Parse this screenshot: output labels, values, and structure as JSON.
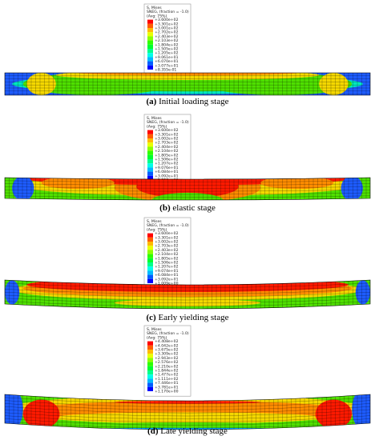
{
  "panels": [
    {
      "legend": {
        "header": [
          "S, Mises",
          "SNEG, (fraction = -1.0)",
          "(Avg: 75%)"
        ],
        "values": [
          "+3.600e+02",
          "+3.301e+02",
          "+3.001e+02",
          "+2.702e+02",
          "+2.403e+02",
          "+2.103e+02",
          "+1.804e+02",
          "+1.505e+02",
          "+1.205e+02",
          "+9.061e+01",
          "+6.070e+01",
          "+3.077e+01",
          "+8.355e-01"
        ]
      },
      "caption": {
        "label": "(a)",
        "text": "Initial loading stage"
      }
    },
    {
      "legend": {
        "header": [
          "S, Mises",
          "SNEG, (fraction = -1.0)",
          "(Avg: 75%)"
        ],
        "values": [
          "+3.600e+02",
          "+3.301e+02",
          "+3.002e+02",
          "+2.703e+02",
          "+2.404e+02",
          "+2.104e+02",
          "+1.805e+02",
          "+1.506e+02",
          "+1.207e+02",
          "+9.076e+01",
          "+6.084e+01",
          "+3.092e+01",
          "+1.006e+00"
        ]
      },
      "caption": {
        "label": "(b)",
        "text": "elastic stage"
      }
    },
    {
      "legend": {
        "header": [
          "S, Mises",
          "SNEG, (fraction = -1.0)",
          "(Avg: 75%)"
        ],
        "values": [
          "+3.600e+02",
          "+3.301e+02",
          "+3.002e+02",
          "+2.703e+02",
          "+2.403e+02",
          "+2.104e+02",
          "+1.805e+02",
          "+1.506e+02",
          "+1.207e+02",
          "+9.074e+01",
          "+6.084e+01",
          "+3.092e+01",
          "+1.009e+00"
        ]
      },
      "caption": {
        "label": "(c)",
        "text": "Early yielding stage"
      }
    },
    {
      "legend": {
        "header": [
          "S, Mises",
          "SNEG, (fraction = -1.0)",
          "(Avg: 75%)"
        ],
        "values": [
          "+4.408e+02",
          "+4.042e+02",
          "+3.675e+02",
          "+3.309e+02",
          "+2.943e+02",
          "+2.576e+02",
          "+2.210e+02",
          "+1.844e+02",
          "+1.477e+02",
          "+1.111e+02",
          "+7.446e+01",
          "+3.781e+01",
          "+1.170e+00"
        ]
      },
      "caption": {
        "label": "(d)",
        "text": "Late yielding stage"
      }
    }
  ]
}
